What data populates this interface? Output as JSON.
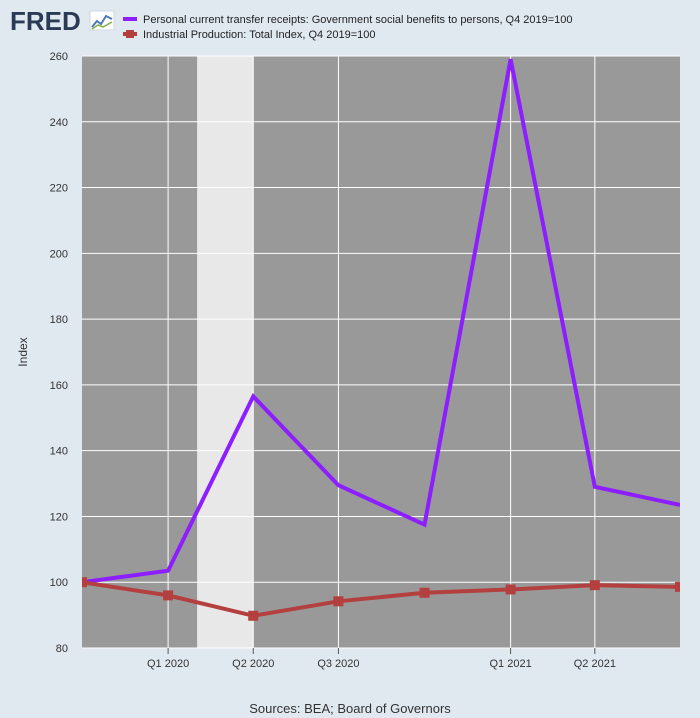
{
  "logo": {
    "text": "FRED"
  },
  "source_note": "Sources: BEA; Board of Governors",
  "chart_data": {
    "type": "line",
    "ylabel": "Index",
    "xlabel": "",
    "ylim": [
      80,
      260
    ],
    "yticks": [
      80,
      100,
      120,
      140,
      160,
      180,
      200,
      220,
      240,
      260
    ],
    "x": [
      "2019-10-01",
      "2020-01-01",
      "2020-04-01",
      "2020-07-01",
      "2020-10-01",
      "2021-01-01",
      "2021-04-01",
      "2021-07-01"
    ],
    "xlim": [
      "2019-10-01",
      "2021-07-01"
    ],
    "xticks": [
      {
        "date": "2020-01-01",
        "label": "Q1 2020"
      },
      {
        "date": "2020-04-01",
        "label": "Q2 2020"
      },
      {
        "date": "2020-07-01",
        "label": "Q3 2020"
      },
      {
        "date": "2021-01-01",
        "label": "Q1 2021"
      },
      {
        "date": "2021-04-01",
        "label": "Q2 2021"
      }
    ],
    "recession": {
      "start": "2020-02-01",
      "end": "2020-04-01"
    },
    "grid": true,
    "legend": "top",
    "series": [
      {
        "name": "Personal current transfer receipts: Government social benefits to persons, Q4 2019=100",
        "color": "#8c1eff",
        "marker": "none",
        "values": [
          100,
          103.5,
          156.5,
          129.5,
          117.5,
          259,
          129,
          123.5
        ]
      },
      {
        "name": "Industrial Production: Total Index, Q4 2019=100",
        "color": "#b3403f",
        "marker": "square",
        "values": [
          100,
          96,
          89.8,
          94.2,
          96.8,
          97.8,
          99.1,
          98.6
        ]
      }
    ]
  }
}
